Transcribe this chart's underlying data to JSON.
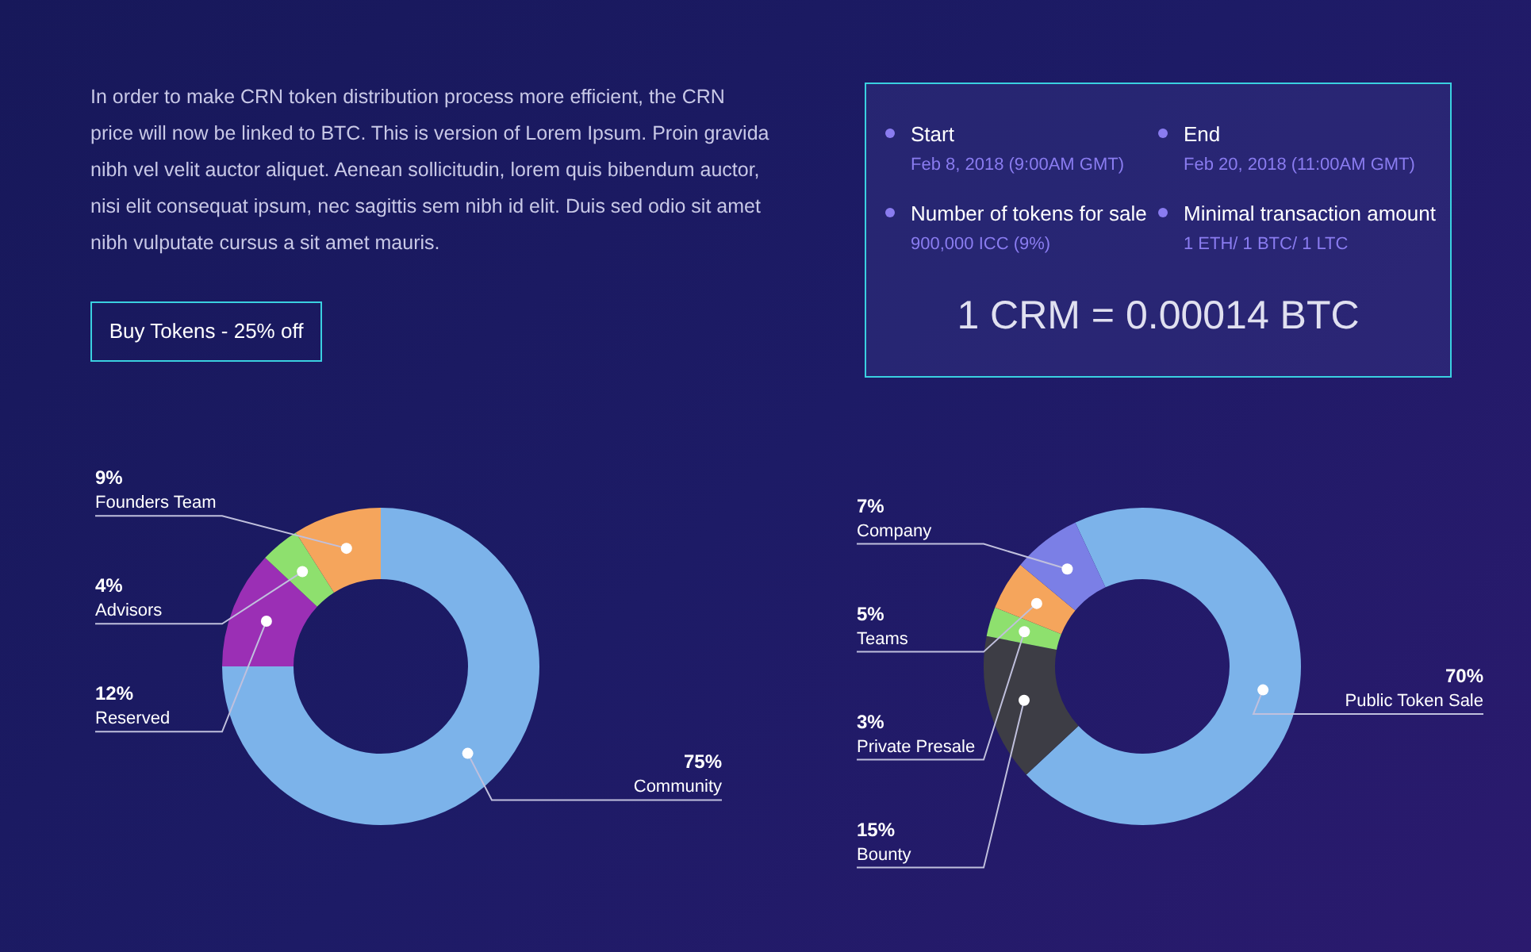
{
  "chart_data": [
    {
      "type": "other",
      "annotations": [
        "In order to make CRN token distribution process more efficient, the CRN price will now be linked to BTC. This is version of Lorem Ipsum. Proin gravida nibh vel velit auctor aliquet. Aenean sollicitudin, lorem quis bibendum auctor, nisi elit consequat ipsum, nec sagittis sem nibh id elit. Duis sed odio sit amet nibh vulputate cursus a sit amet mauris.",
        "Buy Tokens - 25% off",
        "Start",
        "Feb 8, 2018 (9:00AM GMT)",
        "End",
        "Feb 20, 2018 (11:00AM GMT)",
        "Number of tokens for sale",
        "900,000 ICC (9%)",
        "Minimal transaction amount",
        "1 ETH/ 1 BTC/ 1 LTC",
        "1 CRM = 0.00014 BTC"
      ]
    },
    {
      "type": "donut",
      "categories": [
        "Community",
        "Reserved",
        "Advisors",
        "Founders Team"
      ],
      "values": [
        75,
        12,
        4,
        9
      ],
      "colors": [
        "#7cb3ea",
        "#9b2fb5",
        "#8ee06e",
        "#f5a55c"
      ],
      "value_labels": [
        "75%",
        "12%",
        "4%",
        "9%"
      ]
    },
    {
      "type": "donut",
      "categories": [
        "Public Token Sale",
        "Bounty",
        "Private Presale",
        "Teams",
        "Company"
      ],
      "values": [
        70,
        15,
        3,
        5,
        7
      ],
      "colors": [
        "#7cb3ea",
        "#3d3d45",
        "#8ee06e",
        "#f5a55c",
        "#7b7fe6"
      ],
      "value_labels": [
        "70%",
        "15%",
        "3%",
        "5%",
        "7%"
      ]
    }
  ]
}
